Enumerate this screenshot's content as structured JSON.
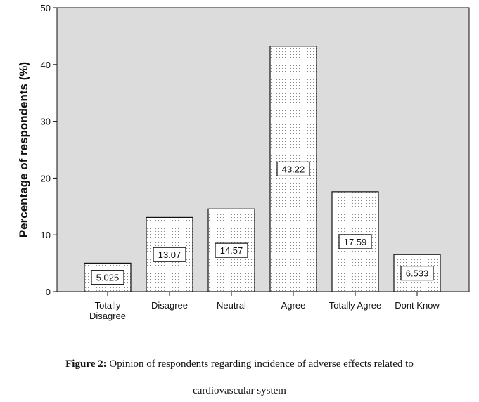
{
  "chart_data": {
    "type": "bar",
    "categories": [
      "Totally Disagree",
      "Disagree",
      "Neutral",
      "Agree",
      "Totally Agree",
      "Dont Know"
    ],
    "category_lines": [
      [
        "Totally",
        "Disagree"
      ],
      [
        "Disagree"
      ],
      [
        "Neutral"
      ],
      [
        "Agree"
      ],
      [
        "Totally Agree"
      ],
      [
        "Dont Know"
      ]
    ],
    "values": [
      5.025,
      13.07,
      14.57,
      43.22,
      17.59,
      6.533
    ],
    "data_labels": [
      "5.025",
      "13.07",
      "14.57",
      "43.22",
      "17.59",
      "6.533"
    ],
    "ylabel": "Percentage of respondents (%)",
    "xlabel": "",
    "ylim": [
      0,
      50
    ],
    "yticks": [
      0,
      10,
      20,
      30,
      40,
      50
    ],
    "grid": false,
    "colors": {
      "plot_bg": "#dcdcdc",
      "bar_fill": "#ffffff",
      "bar_dots": "#8a8a8a",
      "stroke": "#111111"
    }
  },
  "caption": {
    "label": "Figure 2:",
    "text": " Opinion of respondents regarding incidence of adverse effects related to",
    "line2": "cardiovascular system"
  }
}
